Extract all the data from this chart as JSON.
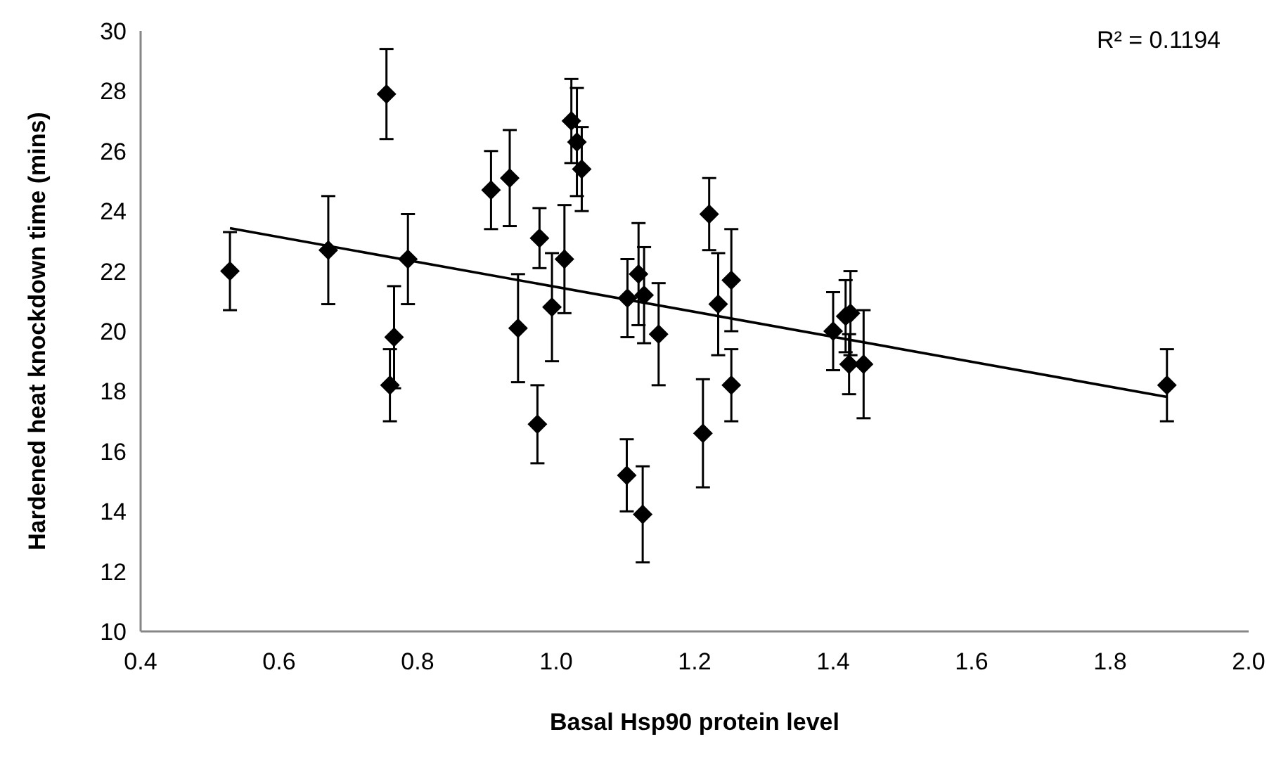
{
  "chart_data": {
    "type": "scatter",
    "xlabel": "Basal Hsp90 protein level",
    "ylabel": "Hardened heat knockdown time (mins)",
    "xlim": [
      0.4,
      2.0
    ],
    "ylim": [
      10,
      30
    ],
    "xticks": [
      {
        "value": 0.4,
        "label": "0.4"
      },
      {
        "value": 0.6,
        "label": "0.6"
      },
      {
        "value": 0.8,
        "label": "0.8"
      },
      {
        "value": 1.0,
        "label": "1.0"
      },
      {
        "value": 1.2,
        "label": "1.2"
      },
      {
        "value": 1.4,
        "label": "1.4"
      },
      {
        "value": 1.6,
        "label": "1.6"
      },
      {
        "value": 1.8,
        "label": "1.8"
      },
      {
        "value": 2.0,
        "label": "2.0"
      }
    ],
    "yticks": [
      10,
      12,
      14,
      16,
      18,
      20,
      22,
      24,
      26,
      28,
      30
    ],
    "grid": false,
    "annotations": [
      "R² = 0.1194"
    ],
    "series": [
      {
        "color": "#000000",
        "marker": "diamond",
        "x": [
          0.529,
          0.671,
          0.755,
          0.786,
          0.766,
          0.76,
          0.906,
          0.933,
          0.945,
          0.973,
          0.976,
          0.994,
          1.012,
          1.022,
          1.03,
          1.037,
          1.102,
          1.103,
          1.119,
          1.127,
          1.125,
          1.148,
          1.212,
          1.221,
          1.234,
          1.253,
          1.253,
          1.4,
          1.425,
          1.418,
          1.423,
          1.444,
          1.882
        ],
        "values": [
          22.0,
          22.7,
          27.9,
          22.4,
          19.8,
          18.2,
          24.7,
          25.1,
          20.1,
          16.9,
          23.1,
          20.8,
          22.4,
          27.0,
          26.3,
          25.4,
          15.2,
          21.1,
          21.9,
          21.2,
          13.9,
          19.9,
          16.6,
          23.9,
          20.9,
          21.7,
          18.2,
          20.0,
          20.6,
          20.5,
          18.9,
          18.9,
          18.2
        ],
        "errors": [
          1.3,
          1.8,
          1.5,
          1.5,
          1.7,
          1.2,
          1.3,
          1.6,
          1.8,
          1.3,
          1.0,
          1.8,
          1.8,
          1.4,
          1.8,
          1.4,
          1.2,
          1.3,
          1.7,
          1.6,
          1.6,
          1.7,
          1.8,
          1.2,
          1.7,
          1.7,
          1.2,
          1.3,
          1.4,
          1.2,
          1.0,
          1.8,
          1.2
        ]
      },
      {
        "type": "line",
        "color": "#000000",
        "line_style": "solid",
        "x": [
          0.529,
          1.882
        ],
        "values": [
          23.43,
          17.81
        ]
      }
    ]
  }
}
